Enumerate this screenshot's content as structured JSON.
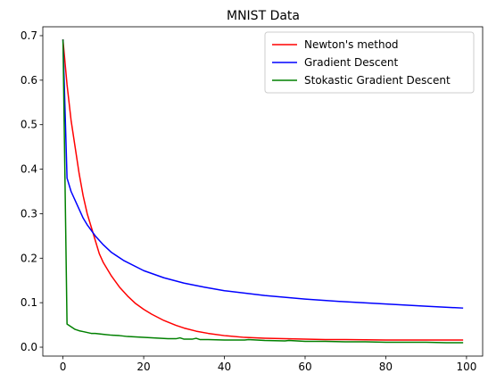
{
  "chart_data": {
    "type": "line",
    "title": "MNIST Data",
    "xlabel": "",
    "ylabel": "",
    "xlim": [
      -5,
      104
    ],
    "ylim": [
      -0.02,
      0.72
    ],
    "xticks": [
      0,
      20,
      40,
      60,
      80,
      100
    ],
    "yticks": [
      0.0,
      0.1,
      0.2,
      0.3,
      0.4,
      0.5,
      0.6,
      0.7
    ],
    "grid": false,
    "legend_position": "top-right",
    "series": [
      {
        "name": "Newton's method",
        "color": "#ff0000",
        "x": [
          0,
          1,
          2,
          3,
          4,
          5,
          6,
          7,
          8,
          9,
          10,
          12,
          14,
          16,
          18,
          20,
          22,
          25,
          28,
          30,
          33,
          36,
          40,
          45,
          50,
          55,
          60,
          65,
          70,
          80,
          90,
          99
        ],
        "y": [
          0.69,
          0.59,
          0.51,
          0.45,
          0.39,
          0.34,
          0.3,
          0.27,
          0.24,
          0.21,
          0.19,
          0.16,
          0.135,
          0.115,
          0.098,
          0.085,
          0.074,
          0.06,
          0.049,
          0.043,
          0.036,
          0.031,
          0.026,
          0.022,
          0.02,
          0.019,
          0.018,
          0.017,
          0.017,
          0.016,
          0.016,
          0.016
        ]
      },
      {
        "name": "Gradient Descent",
        "color": "#0000ff",
        "x": [
          0,
          1,
          2,
          3,
          4,
          5,
          6,
          8,
          10,
          12,
          15,
          20,
          25,
          30,
          35,
          40,
          50,
          60,
          70,
          80,
          90,
          99
        ],
        "y": [
          0.69,
          0.38,
          0.35,
          0.33,
          0.31,
          0.29,
          0.275,
          0.25,
          0.23,
          0.213,
          0.195,
          0.172,
          0.156,
          0.144,
          0.135,
          0.127,
          0.116,
          0.108,
          0.102,
          0.097,
          0.092,
          0.088
        ]
      },
      {
        "name": "Stokastic Gradient Descent",
        "color": "#008000",
        "x": [
          0,
          1,
          2,
          3,
          4,
          5,
          6,
          7,
          8,
          9,
          10,
          12,
          14,
          15,
          16,
          18,
          20,
          22,
          24,
          26,
          28,
          29,
          30,
          32,
          33,
          34,
          36,
          40,
          45,
          46,
          50,
          55,
          56,
          60,
          65,
          70,
          75,
          80,
          85,
          90,
          95,
          99
        ],
        "y": [
          0.69,
          0.052,
          0.046,
          0.04,
          0.037,
          0.035,
          0.033,
          0.031,
          0.031,
          0.03,
          0.029,
          0.027,
          0.026,
          0.025,
          0.024,
          0.023,
          0.022,
          0.021,
          0.02,
          0.019,
          0.019,
          0.021,
          0.018,
          0.018,
          0.02,
          0.017,
          0.017,
          0.016,
          0.016,
          0.017,
          0.015,
          0.014,
          0.015,
          0.013,
          0.013,
          0.012,
          0.012,
          0.011,
          0.011,
          0.011,
          0.01,
          0.01
        ]
      }
    ]
  }
}
